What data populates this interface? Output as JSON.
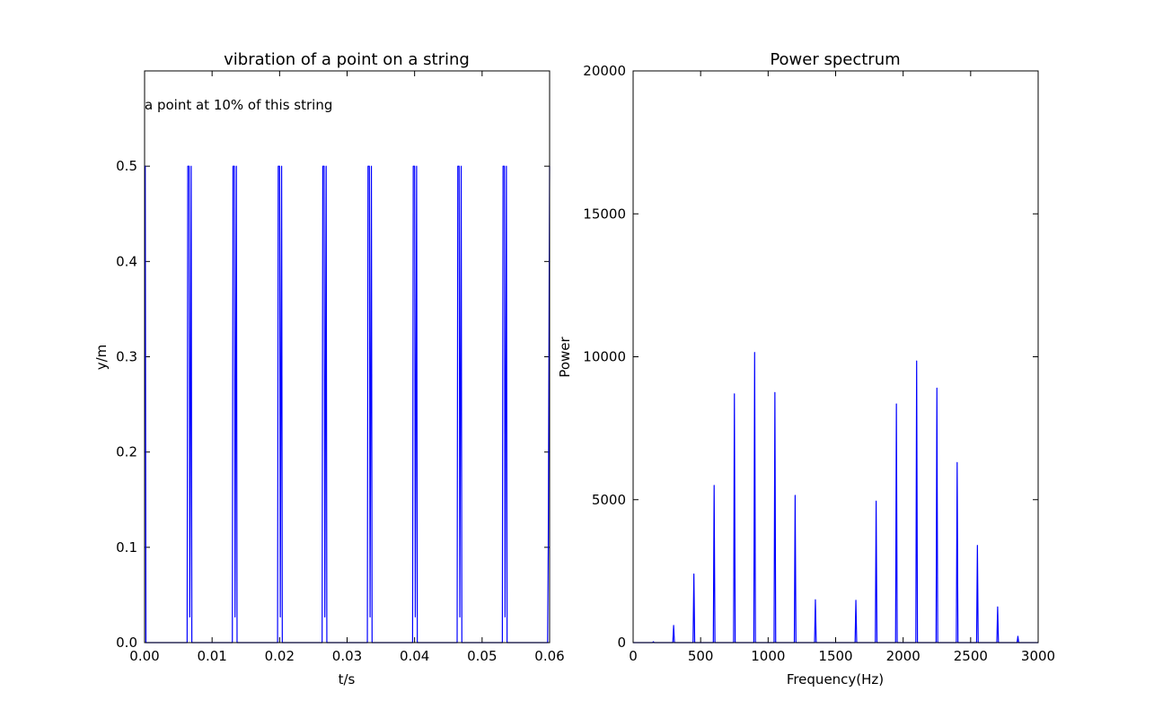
{
  "colors": {
    "series": "#0000ff",
    "axes": "#000000",
    "background": "#ffffff"
  },
  "chart_data": [
    {
      "type": "line",
      "title": "vibration of a point on a string",
      "xlabel": "t/s",
      "ylabel": "y/m",
      "xlim": [
        0.0,
        0.06
      ],
      "ylim": [
        0.0,
        0.6
      ],
      "xticks": [
        0.0,
        0.01,
        0.02,
        0.03,
        0.04,
        0.05,
        0.06
      ],
      "xtick_labels": [
        "0.00",
        "0.01",
        "0.02",
        "0.03",
        "0.04",
        "0.05",
        "0.06"
      ],
      "yticks": [
        0.0,
        0.1,
        0.2,
        0.3,
        0.4,
        0.5
      ],
      "ytick_labels": [
        "0.0",
        "0.1",
        "0.2",
        "0.3",
        "0.4",
        "0.5"
      ],
      "grid": false,
      "annotations": [
        {
          "text": "a point at 10% of this string",
          "x": 0.0,
          "y": 0.565
        }
      ],
      "series": [
        {
          "color": "#0000ff",
          "x": [
            0.0,
            0.0001,
            0.0002,
            0.0004,
            0.0063,
            0.0064,
            0.0066,
            0.0067,
            0.0069,
            0.007,
            0.013,
            0.0131,
            0.0133,
            0.0134,
            0.0136,
            0.0137,
            0.0197,
            0.0198,
            0.02,
            0.0201,
            0.0203,
            0.0204,
            0.0263,
            0.0264,
            0.0266,
            0.0267,
            0.0269,
            0.027,
            0.033,
            0.0331,
            0.0333,
            0.0334,
            0.0336,
            0.0337,
            0.0397,
            0.0398,
            0.04,
            0.0401,
            0.0403,
            0.0404,
            0.0463,
            0.0464,
            0.0466,
            0.0467,
            0.0469,
            0.047,
            0.053,
            0.0531,
            0.0533,
            0.0534,
            0.0536,
            0.0537,
            0.0597,
            0.0598,
            0.06
          ],
          "y": [
            0.5,
            0.5,
            0.0,
            0.0,
            0.0,
            0.5,
            0.5,
            0.027,
            0.5,
            0.0,
            0.0,
            0.5,
            0.5,
            0.027,
            0.5,
            0.0,
            0.0,
            0.5,
            0.5,
            0.027,
            0.5,
            0.0,
            0.0,
            0.5,
            0.5,
            0.027,
            0.5,
            0.0,
            0.0,
            0.5,
            0.5,
            0.027,
            0.5,
            0.0,
            0.0,
            0.5,
            0.5,
            0.027,
            0.5,
            0.0,
            0.0,
            0.5,
            0.5,
            0.027,
            0.5,
            0.0,
            0.0,
            0.5,
            0.5,
            0.027,
            0.5,
            0.0,
            0.0,
            0.1,
            0.5
          ]
        }
      ]
    },
    {
      "type": "line",
      "title": "Power spectrum",
      "xlabel": "Frequency(Hz)",
      "ylabel": "Power",
      "xlim": [
        0,
        3000
      ],
      "ylim": [
        0,
        20000
      ],
      "xticks": [
        0,
        500,
        1000,
        1500,
        2000,
        2500,
        3000
      ],
      "xtick_labels": [
        "0",
        "500",
        "1000",
        "1500",
        "2000",
        "2500",
        "3000"
      ],
      "yticks": [
        0,
        5000,
        10000,
        15000,
        20000
      ],
      "ytick_labels": [
        "0",
        "5000",
        "10000",
        "15000",
        "20000"
      ],
      "grid": false,
      "series": [
        {
          "color": "#0000ff",
          "peaks_hz": [
            150,
            300,
            450,
            600,
            750,
            900,
            1050,
            1200,
            1350,
            1500,
            1650,
            1800,
            1950,
            2100,
            2250,
            2400,
            2550,
            2700,
            2850
          ],
          "peak_power": [
            30,
            600,
            2400,
            5500,
            8700,
            10150,
            8750,
            5150,
            1500,
            0,
            1480,
            4950,
            8350,
            9850,
            8900,
            6300,
            3400,
            1250,
            220
          ]
        }
      ]
    }
  ]
}
